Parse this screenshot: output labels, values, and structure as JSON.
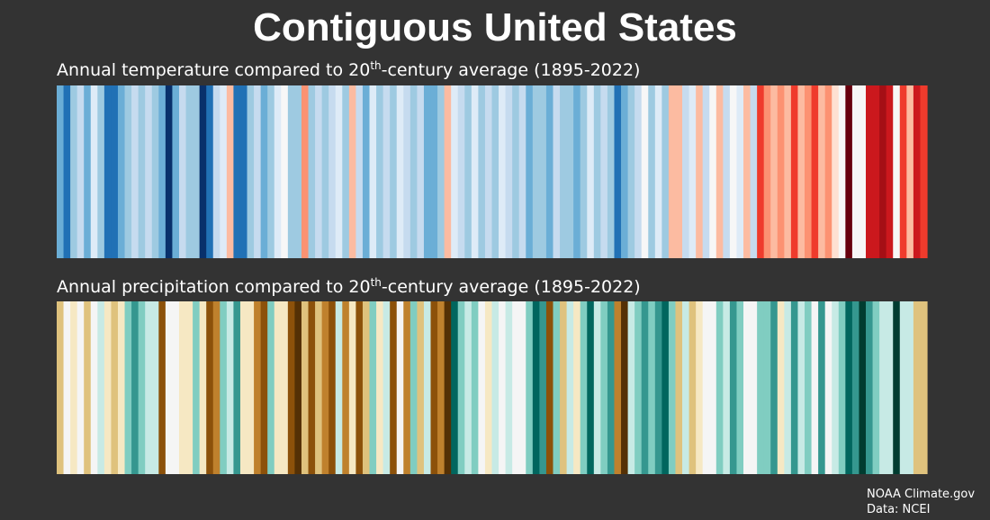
{
  "title": "Contiguous United States",
  "source": [
    "NOAA Climate.gov",
    "Data: NCEI"
  ],
  "chart_data": [
    {
      "type": "stripes",
      "title_parts": [
        "Annual temperature compared to 20",
        "th",
        "-century average (1895-2022)"
      ],
      "colors": [
        "#6baed6",
        "#2171b5",
        "#9ecae1",
        "#c6dbef",
        "#6baed6",
        "#deebf7",
        "#9ecae1",
        "#2171b5",
        "#2171b5",
        "#6baed6",
        "#9ecae1",
        "#c6dbef",
        "#9ecae1",
        "#c6dbef",
        "#9ecae1",
        "#6baed6",
        "#08306b",
        "#6baed6",
        "#c6dbef",
        "#9ecae1",
        "#9ecae1",
        "#08306b",
        "#2171b5",
        "#c6dbef",
        "#deebf7",
        "#fcbba1",
        "#2171b5",
        "#2171b5",
        "#9ecae1",
        "#c6dbef",
        "#6baed6",
        "#9ecae1",
        "#deebf7",
        "#f7f7f7",
        "#9ecae1",
        "#9ecae1",
        "#fc9272",
        "#9ecae1",
        "#c6dbef",
        "#9ecae1",
        "#c6dbef",
        "#deebf7",
        "#9ecae1",
        "#fcbba1",
        "#c6dbef",
        "#6baed6",
        "#deebf7",
        "#9ecae1",
        "#c6dbef",
        "#9ecae1",
        "#deebf7",
        "#c6dbef",
        "#9ecae1",
        "#c6dbef",
        "#6baed6",
        "#6baed6",
        "#9ecae1",
        "#fcbba1",
        "#deebf7",
        "#c6dbef",
        "#9ecae1",
        "#deebf7",
        "#9ecae1",
        "#c6dbef",
        "#9ecae1",
        "#deebf7",
        "#c6dbef",
        "#9ecae1",
        "#c6dbef",
        "#6baed6",
        "#9ecae1",
        "#9ecae1",
        "#6baed6",
        "#c6dbef",
        "#9ecae1",
        "#9ecae1",
        "#6baed6",
        "#9ecae1",
        "#deebf7",
        "#9ecae1",
        "#c6dbef",
        "#9ecae1",
        "#2171b5",
        "#6baed6",
        "#9ecae1",
        "#c6dbef",
        "#f7f7f7",
        "#9ecae1",
        "#deebf7",
        "#9ecae1",
        "#fcbba1",
        "#fcbba1",
        "#c6dbef",
        "#deebf7",
        "#fcbba1",
        "#c6dbef",
        "#f7f7f7",
        "#fcbba1",
        "#c6dbef",
        "#f7f7f7",
        "#deebf7",
        "#fcbba1",
        "#c6dbef",
        "#ef3b2c",
        "#fc9272",
        "#fcbba1",
        "#fc9272",
        "#fcbba1",
        "#ef3b2c",
        "#fcbba1",
        "#fc9272",
        "#ef3b2c",
        "#fcbba1",
        "#fc9272",
        "#fee0d2",
        "#f7f7f7",
        "#67000d",
        "#f7f7f7",
        "#f7f7f7",
        "#cb181d",
        "#cb181d",
        "#a50f15",
        "#cb181d",
        "#f7f7f7",
        "#ef3b2c",
        "#fcbba1",
        "#cb181d",
        "#ef3b2c"
      ]
    },
    {
      "type": "stripes",
      "title_parts": [
        "Annual precipitation compared to 20",
        "th",
        "-century average (1895-2022)"
      ],
      "colors": [
        "#dfc27d",
        "#f5f5f5",
        "#f6e8c3",
        "#f5f5f5",
        "#dfc27d",
        "#f5f5f5",
        "#c7eae5",
        "#f6e8c3",
        "#dfc27d",
        "#f6e8c3",
        "#80cdc1",
        "#35978f",
        "#80cdc1",
        "#c7eae5",
        "#c7eae5",
        "#8c510a",
        "#f5f5f5",
        "#f5f5f5",
        "#f6e8c3",
        "#f6e8c3",
        "#80cdc1",
        "#f6e8c3",
        "#8c510a",
        "#bf812d",
        "#80cdc1",
        "#c7eae5",
        "#35978f",
        "#f6e8c3",
        "#f6e8c3",
        "#bf812d",
        "#8c510a",
        "#80cdc1",
        "#f6e8c3",
        "#f6e8c3",
        "#8c510a",
        "#543005",
        "#dfc27d",
        "#8c510a",
        "#dfc27d",
        "#bf812d",
        "#8c510a",
        "#c7eae5",
        "#bf812d",
        "#f6e8c3",
        "#8c510a",
        "#dfc27d",
        "#80cdc1",
        "#f6e8c3",
        "#c7eae5",
        "#8c510a",
        "#f5f5f5",
        "#bf812d",
        "#80cdc1",
        "#dfc27d",
        "#c7eae5",
        "#8c510a",
        "#bf812d",
        "#543005",
        "#01665e",
        "#80cdc1",
        "#c7eae5",
        "#80cdc1",
        "#f5f5f5",
        "#f6e8c3",
        "#c7eae5",
        "#f5f5f5",
        "#c7eae5",
        "#f5f5f5",
        "#f5f5f5",
        "#80cdc1",
        "#01665e",
        "#35978f",
        "#8c510a",
        "#80cdc1",
        "#dfc27d",
        "#c7eae5",
        "#f6e8c3",
        "#80cdc1",
        "#01665e",
        "#c7eae5",
        "#80cdc1",
        "#35978f",
        "#bf812d",
        "#543005",
        "#c7eae5",
        "#80cdc1",
        "#35978f",
        "#80cdc1",
        "#35978f",
        "#01665e",
        "#80cdc1",
        "#dfc27d",
        "#c7eae5",
        "#dfc27d",
        "#f6e8c3",
        "#f5f5f5",
        "#f5f5f5",
        "#80cdc1",
        "#c7eae5",
        "#35978f",
        "#80cdc1",
        "#f5f5f5",
        "#f5f5f5",
        "#80cdc1",
        "#80cdc1",
        "#35978f",
        "#f6e8c3",
        "#c7eae5",
        "#35978f",
        "#c7eae5",
        "#80cdc1",
        "#f5f5f5",
        "#35978f",
        "#f5f5f5",
        "#c7eae5",
        "#80cdc1",
        "#01665e",
        "#35978f",
        "#003c30",
        "#35978f",
        "#80cdc1",
        "#c7eae5",
        "#c7eae5",
        "#003c30",
        "#c7eae5",
        "#c7eae5",
        "#dfc27d",
        "#dfc27d"
      ]
    }
  ]
}
